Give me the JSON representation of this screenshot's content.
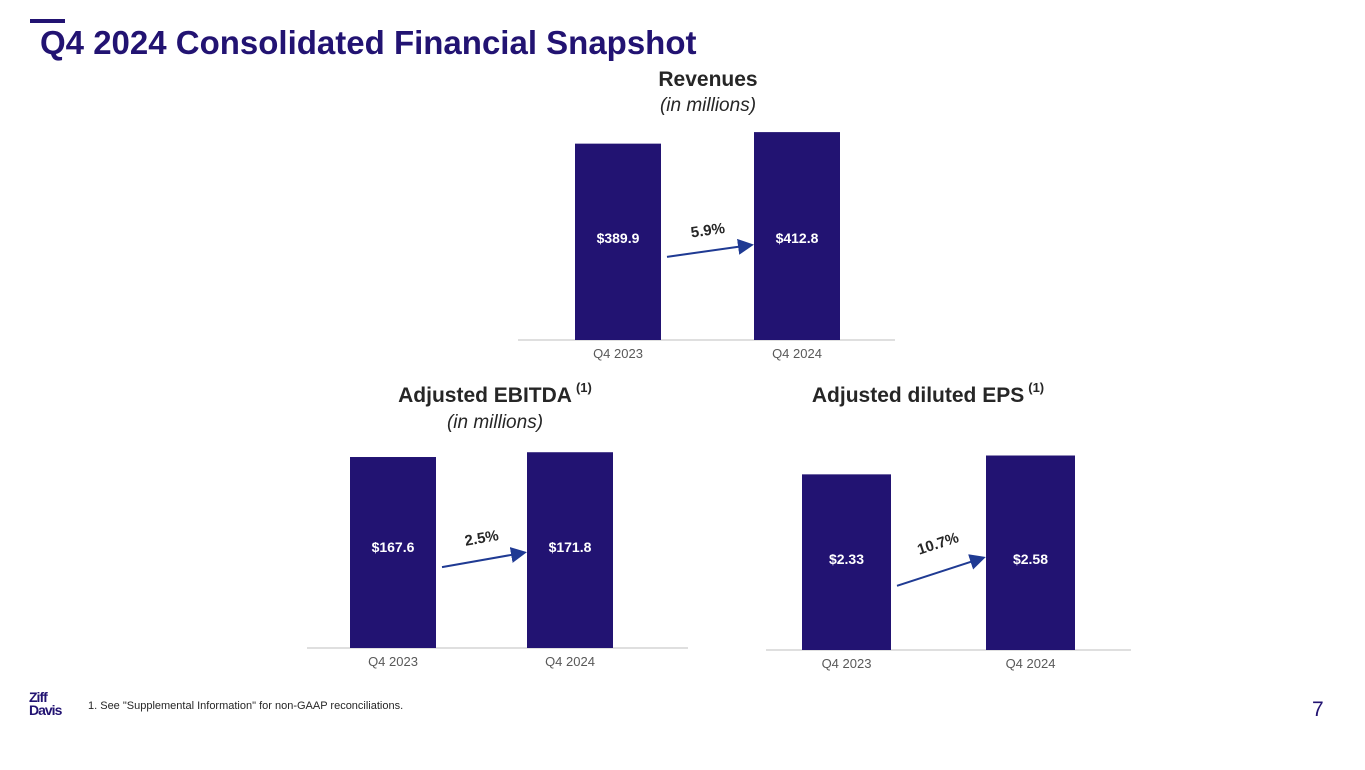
{
  "page": {
    "title": "Q4 2024 Consolidated Financial Snapshot",
    "footnote": "1.  See \"Supplemental Information\" for non-GAAP reconciliations.",
    "page_number": "7",
    "logo": {
      "line1": "Ziff",
      "line2": "Davis",
      "color": "#221372"
    }
  },
  "colors": {
    "bar": "#221372",
    "arrow": "#1f3a93",
    "axis": "#bfbfbf",
    "label": "#ffffff",
    "tick": "#595959",
    "growth": "#262626"
  },
  "chart_data": [
    {
      "id": "revenues",
      "type": "bar",
      "title": "Revenues",
      "subtitle": "(in millions)",
      "footnote_ref": "",
      "categories": [
        "Q4 2023",
        "Q4 2024"
      ],
      "values": [
        389.9,
        412.8
      ],
      "value_labels": [
        "$389.9",
        "$412.8"
      ],
      "growth_label": "5.9%",
      "ylim": [
        0,
        415
      ]
    },
    {
      "id": "adjusted-ebitda",
      "type": "bar",
      "title": "Adjusted EBITDA",
      "subtitle": "(in millions)",
      "footnote_ref": "(1)",
      "categories": [
        "Q4 2023",
        "Q4 2024"
      ],
      "values": [
        167.6,
        171.8
      ],
      "value_labels": [
        "$167.6",
        "$171.8"
      ],
      "growth_label": "2.5%",
      "ylim": [
        0,
        172
      ]
    },
    {
      "id": "adjusted-diluted-eps",
      "type": "bar",
      "title": "Adjusted diluted EPS",
      "subtitle": "",
      "footnote_ref": "(1)",
      "categories": [
        "Q4 2023",
        "Q4 2024"
      ],
      "values": [
        2.33,
        2.58
      ],
      "value_labels": [
        "$2.33",
        "$2.58"
      ],
      "growth_label": "10.7%",
      "ylim": [
        0,
        2.6
      ]
    }
  ]
}
